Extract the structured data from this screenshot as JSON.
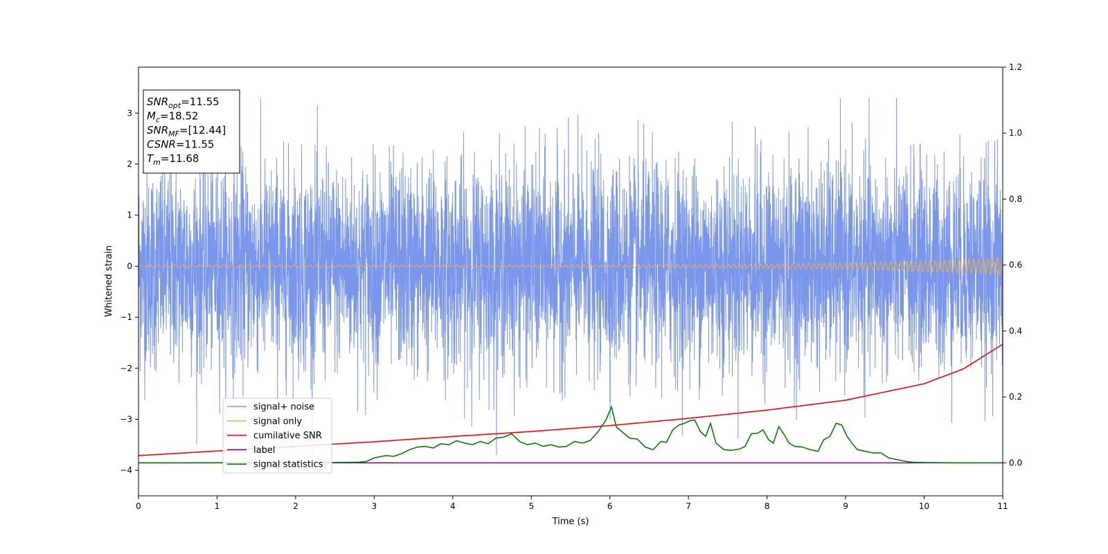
{
  "chart_data": {
    "type": "line",
    "xlabel": "Time (s)",
    "ylabel": "Whitened strain",
    "xlim": [
      0,
      11
    ],
    "ylim": [
      -4.5,
      3.9
    ],
    "y2lim": [
      -0.1,
      1.2
    ],
    "x_ticks": [
      "0",
      "1",
      "2",
      "3",
      "4",
      "5",
      "6",
      "7",
      "8",
      "9",
      "10",
      "11"
    ],
    "y_ticks": [
      "−4",
      "−3",
      "−2",
      "−1",
      "0",
      "1",
      "2",
      "3"
    ],
    "y2_ticks": [
      "0.0",
      "0.2",
      "0.4",
      "0.6",
      "0.8",
      "1.0",
      "1.2"
    ],
    "grid": false,
    "legend_position": "lower-left",
    "annotation": [
      {
        "base": "SNR",
        "sub": "opt",
        "value": "=11.55"
      },
      {
        "base": "M",
        "sub": "c",
        "value": "=18.52"
      },
      {
        "base": "SNR",
        "sub": "MF",
        "value": "=[12.44]"
      },
      {
        "base": "CSNR",
        "sub": "",
        "value": "=11.55"
      },
      {
        "base": "T",
        "sub": "m",
        "value": "=11.68"
      }
    ],
    "series": [
      {
        "name": "signal+ noise",
        "axis": "left",
        "color": "#4169e1",
        "kind": "noise",
        "approx_range": [
          -3.7,
          3.3
        ],
        "note_std": 1.0
      },
      {
        "name": "signal only",
        "axis": "left",
        "color": "#f5b041",
        "kind": "chirp",
        "amplitude_start": 0.02,
        "amplitude_end": 0.17
      },
      {
        "name": "cumilative SNR",
        "axis": "right",
        "color": "#ff0000",
        "x": [
          0,
          1,
          2,
          3,
          4,
          5,
          6,
          7,
          8,
          9,
          10,
          10.5,
          11
        ],
        "y": [
          0.022,
          0.036,
          0.05,
          0.064,
          0.08,
          0.095,
          0.113,
          0.135,
          0.16,
          0.19,
          0.24,
          0.285,
          0.36
        ]
      },
      {
        "name": "label",
        "axis": "right",
        "color": "#800080",
        "x": [
          0,
          11
        ],
        "y": [
          0,
          0
        ]
      },
      {
        "name": "signal statistics",
        "axis": "right",
        "color": "#008000",
        "x": [
          0,
          2.5,
          2.8,
          2.9,
          3.0,
          3.1,
          3.15,
          3.25,
          3.35,
          3.45,
          3.55,
          3.65,
          3.75,
          3.85,
          3.95,
          4.05,
          4.15,
          4.25,
          4.35,
          4.45,
          4.55,
          4.65,
          4.75,
          4.85,
          4.95,
          5.05,
          5.15,
          5.25,
          5.35,
          5.45,
          5.55,
          5.65,
          5.75,
          5.85,
          5.95,
          6.02,
          6.08,
          6.15,
          6.25,
          6.35,
          6.45,
          6.55,
          6.65,
          6.72,
          6.8,
          6.88,
          6.95,
          7.02,
          7.08,
          7.15,
          7.22,
          7.28,
          7.35,
          7.45,
          7.55,
          7.65,
          7.72,
          7.8,
          7.88,
          7.95,
          8.02,
          8.08,
          8.15,
          8.22,
          8.28,
          8.35,
          8.45,
          8.55,
          8.65,
          8.72,
          8.8,
          8.88,
          8.95,
          9.02,
          9.08,
          9.15,
          9.25,
          9.35,
          9.45,
          9.55,
          9.65,
          9.75,
          9.85,
          10.0,
          10.5,
          11
        ],
        "y": [
          0,
          0.001,
          0.002,
          0.004,
          0.015,
          0.02,
          0.022,
          0.02,
          0.028,
          0.04,
          0.048,
          0.05,
          0.045,
          0.058,
          0.055,
          0.067,
          0.06,
          0.055,
          0.065,
          0.058,
          0.075,
          0.078,
          0.088,
          0.065,
          0.055,
          0.06,
          0.05,
          0.055,
          0.048,
          0.05,
          0.065,
          0.06,
          0.068,
          0.095,
          0.13,
          0.17,
          0.11,
          0.095,
          0.075,
          0.072,
          0.048,
          0.04,
          0.065,
          0.062,
          0.1,
          0.115,
          0.12,
          0.128,
          0.13,
          0.095,
          0.08,
          0.12,
          0.06,
          0.04,
          0.038,
          0.042,
          0.05,
          0.088,
          0.09,
          0.1,
          0.07,
          0.06,
          0.11,
          0.085,
          0.06,
          0.05,
          0.048,
          0.04,
          0.035,
          0.07,
          0.08,
          0.12,
          0.115,
          0.08,
          0.06,
          0.04,
          0.035,
          0.03,
          0.03,
          0.015,
          0.01,
          0.005,
          0.002,
          0.001,
          0,
          0
        ]
      }
    ]
  }
}
